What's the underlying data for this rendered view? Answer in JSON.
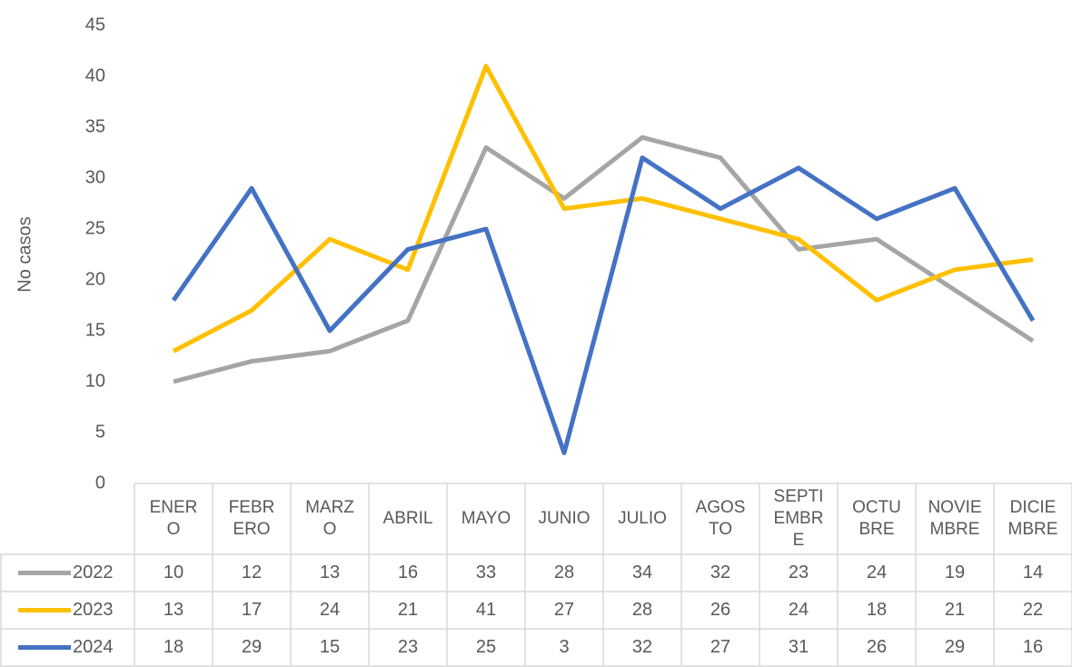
{
  "chart_data": {
    "type": "line",
    "y_label": "No casos",
    "categories": [
      "ENERO",
      "FEBRERO",
      "MARZO",
      "ABRIL",
      "MAYO",
      "JUNIO",
      "JULIO",
      "AGOSTO",
      "SEPTIEMBRE",
      "OCTUBRE",
      "NOVIEMBRE",
      "DICIEMBRE"
    ],
    "series": [
      {
        "name": "2022",
        "color": "#a5a5a5",
        "values": [
          10,
          12,
          13,
          16,
          33,
          28,
          34,
          32,
          23,
          24,
          19,
          14
        ]
      },
      {
        "name": "2023",
        "color": "#ffc000",
        "values": [
          13,
          17,
          24,
          21,
          41,
          27,
          28,
          26,
          24,
          18,
          21,
          22
        ]
      },
      {
        "name": "2024",
        "color": "#4472c4",
        "values": [
          18,
          29,
          15,
          23,
          25,
          3,
          32,
          27,
          31,
          26,
          29,
          16
        ]
      }
    ],
    "ylim": [
      0,
      45
    ],
    "yticks": [
      0,
      5,
      10,
      15,
      20,
      25,
      30,
      35,
      40,
      45
    ],
    "grid": false,
    "data_table": true
  }
}
